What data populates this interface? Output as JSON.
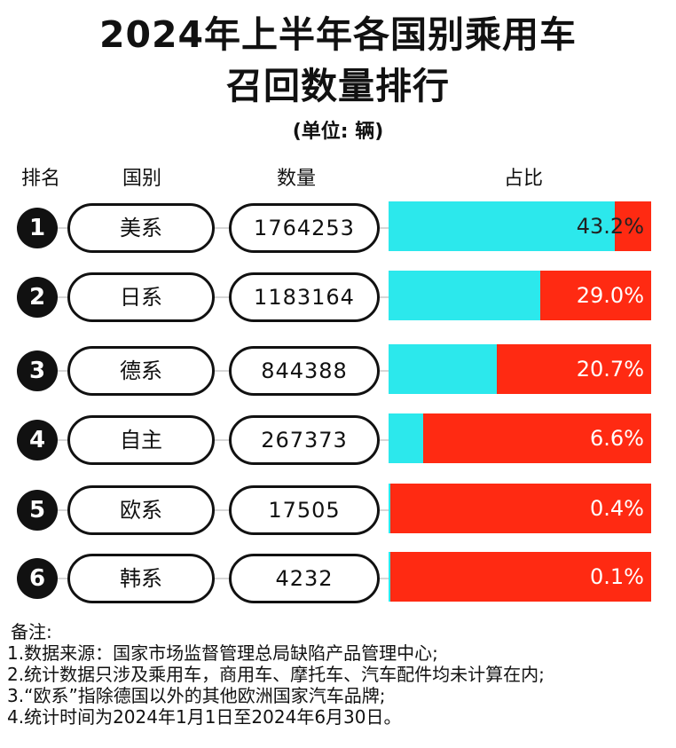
{
  "title_line1": "2024年上半年各国别乘用车",
  "title_line2": "召回数量排行",
  "unit": "(单位: 辆)",
  "headers": {
    "rank": "排名",
    "country": "国别",
    "count": "数量",
    "share": "占比"
  },
  "colors": {
    "share_fill": "#2ce8ec",
    "remainder": "#ff2a12",
    "badge": "#111111"
  },
  "chart_data": {
    "type": "bar",
    "categories": [
      "美系",
      "日系",
      "德系",
      "自主",
      "欧系",
      "韩系"
    ],
    "ranks": [
      "1",
      "2",
      "3",
      "4",
      "5",
      "6"
    ],
    "values": [
      1764253,
      1183164,
      844388,
      267373,
      17505,
      4232
    ],
    "values_text": [
      "1764253",
      "1183164",
      "844388",
      "267373",
      "17505",
      "4232"
    ],
    "shares": [
      43.2,
      29.0,
      20.7,
      6.6,
      0.4,
      0.1
    ],
    "shares_text": [
      "43.2%",
      "29.0%",
      "20.7%",
      "6.6%",
      "0.4%",
      "0.1%"
    ],
    "title": "2024年上半年各国别乘用车召回数量排行"
  },
  "notes": {
    "heading": "备注:",
    "items": [
      "1.数据来源：国家市场监督管理总局缺陷产品管理中心;",
      "2.统计数据只涉及乘用车，商用车、摩托车、汽车配件均未计算在内;",
      "3.“欧系”指除德国以外的其他欧洲国家汽车品牌;",
      "4.统计时间为2024年1月1日至2024年6月30日。"
    ]
  }
}
